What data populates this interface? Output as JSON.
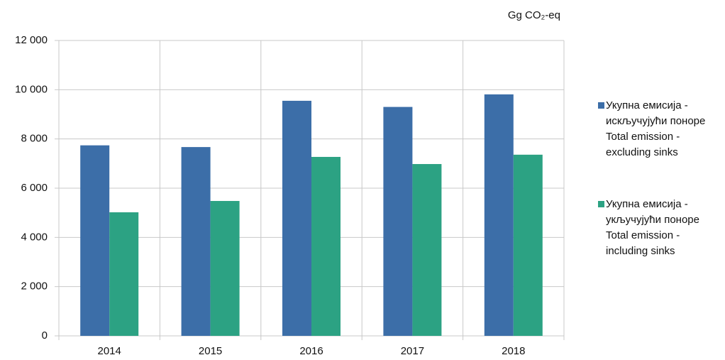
{
  "chart_data": {
    "type": "bar",
    "y_axis_label": "Gg CO₂-eq",
    "categories": [
      "2014",
      "2015",
      "2016",
      "2017",
      "2018"
    ],
    "series": [
      {
        "name": "Укупна емисија -\nискључујући поноре\nTotal emission -\nexcluding sinks",
        "color": "#3c6ea8",
        "values": [
          7740,
          7670,
          9550,
          9300,
          9810
        ]
      },
      {
        "name": "Укупна емисија -\nукључујући поноре\nTotal emission -\nincluding sinks",
        "color": "#2ca283",
        "values": [
          5020,
          5480,
          7270,
          6980,
          7360
        ]
      }
    ],
    "ylim": [
      0,
      12000
    ],
    "yticks": [
      0,
      {
        "value": 2000,
        "label": "2 000"
      },
      {
        "value": 4000,
        "label": "4 000"
      },
      {
        "value": 6000,
        "label": "6 000"
      },
      {
        "value": 8000,
        "label": "8 000"
      },
      {
        "value": 10000,
        "label": "10 000"
      },
      {
        "value": 12000,
        "label": "12 000"
      }
    ],
    "grid": true,
    "legend": "right"
  }
}
